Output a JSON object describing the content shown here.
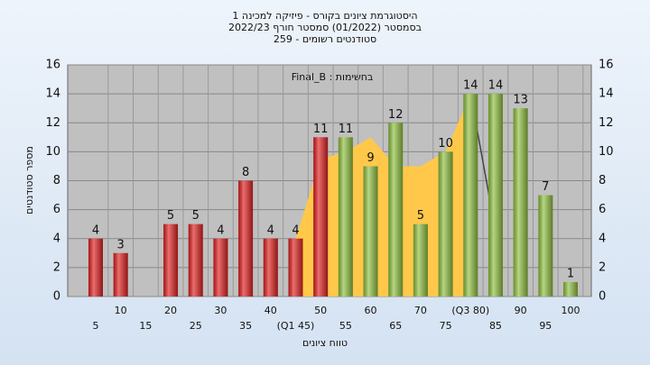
{
  "chart_data": {
    "type": "bar",
    "title": [
      "היסטוגרמת ציונים בקורס - פיזיקה למכינה 1",
      "בסמסטר  (01/2022)  סמסטר חורף 2022/23",
      "סטודנטים רשומים - 259"
    ],
    "annotation": "Final_B : בחשימות",
    "ylabel": "מספר סטודנטים",
    "xlabel": "טווח ציונים",
    "categories": [
      "5",
      "10",
      "15",
      "20",
      "25",
      "30",
      "35",
      "40",
      "(Q1 45)",
      "50",
      "55",
      "60",
      "65",
      "70",
      "75",
      "(Q3 80)",
      "85",
      "90",
      "95",
      "100"
    ],
    "values": [
      4,
      3,
      null,
      5,
      5,
      4,
      8,
      4,
      4,
      11,
      11,
      9,
      12,
      5,
      10,
      14,
      14,
      13,
      7,
      1
    ],
    "colors": [
      "#e02020",
      "#e02020",
      "#e02020",
      "#e02020",
      "#e02020",
      "#e02020",
      "#e02020",
      "#e02020",
      "#e02020",
      "#e02020",
      "#8fc040",
      "#8fc040",
      "#8fc040",
      "#8fc040",
      "#8fc040",
      "#8fc040",
      "#8fc040",
      "#8fc040",
      "#8fc040",
      "#8fc040"
    ],
    "area": {
      "color": "#ffc84a",
      "values": [
        null,
        null,
        null,
        null,
        null,
        null,
        null,
        null,
        4,
        9.5,
        10,
        11,
        9,
        9,
        10,
        14,
        null,
        null,
        null,
        null
      ]
    },
    "line": {
      "color": "#444444",
      "values": [
        null,
        null,
        null,
        null,
        null,
        null,
        null,
        null,
        null,
        null,
        null,
        null,
        null,
        null,
        null,
        14,
        4.5,
        null,
        null,
        null
      ]
    },
    "ylim": [
      0,
      16
    ],
    "yticks": [
      0,
      2,
      4,
      6,
      8,
      10,
      12,
      14,
      16
    ],
    "grid": true
  }
}
